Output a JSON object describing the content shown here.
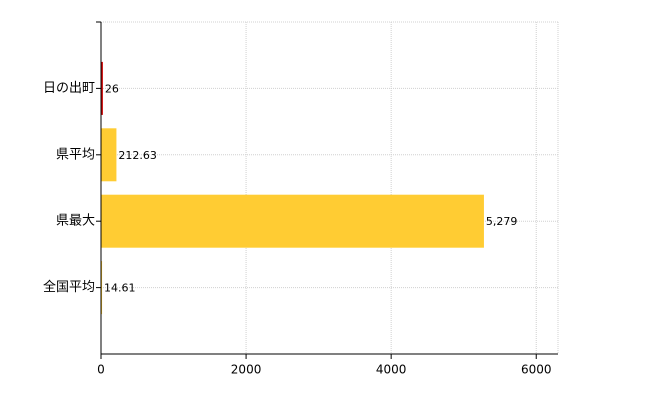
{
  "chart_data": {
    "type": "bar",
    "orientation": "horizontal",
    "categories": [
      "日の出町",
      "県平均",
      "県最大",
      "全国平均"
    ],
    "values": [
      26,
      212.63,
      5279,
      14.61
    ],
    "value_labels": [
      "26",
      "212.63",
      "5,279",
      "14.61"
    ],
    "colors": [
      "#cc0000",
      "#ffcc33",
      "#ffcc33",
      "#ffcc33"
    ],
    "xlim": [
      0,
      6300
    ],
    "xticks": [
      0,
      2000,
      4000,
      6000
    ],
    "grid": true
  }
}
